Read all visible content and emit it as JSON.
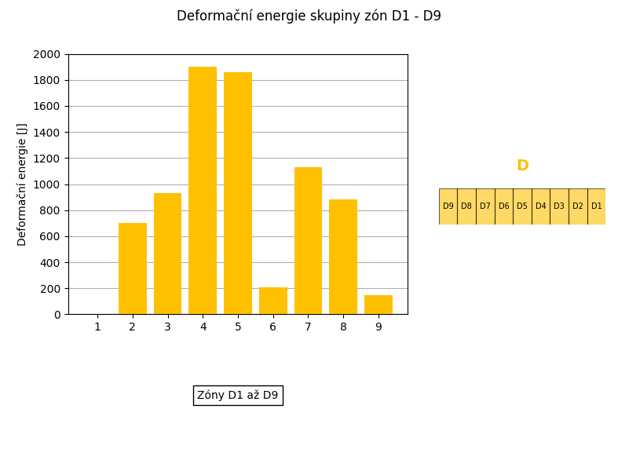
{
  "chart_data": {
    "type": "bar",
    "title": "Deformační energie skupiny zón D1 - D9",
    "categories": [
      "1",
      "2",
      "3",
      "4",
      "5",
      "6",
      "7",
      "8",
      "9"
    ],
    "values": [
      0,
      700,
      930,
      1900,
      1860,
      210,
      1130,
      880,
      150
    ],
    "color": "#FFC000",
    "y_label": "Deformační energie [J]",
    "ylim": [
      0,
      2000
    ],
    "yticks": [
      0,
      200,
      400,
      600,
      800,
      1000,
      1200,
      1400,
      1600,
      1800,
      2000
    ],
    "grid": true,
    "annotations": [
      "Zóny D1 až D9",
      "D",
      "D9",
      "D8",
      "D7",
      "D6",
      "D5",
      "D4",
      "D3",
      "D2",
      "D1"
    ]
  }
}
